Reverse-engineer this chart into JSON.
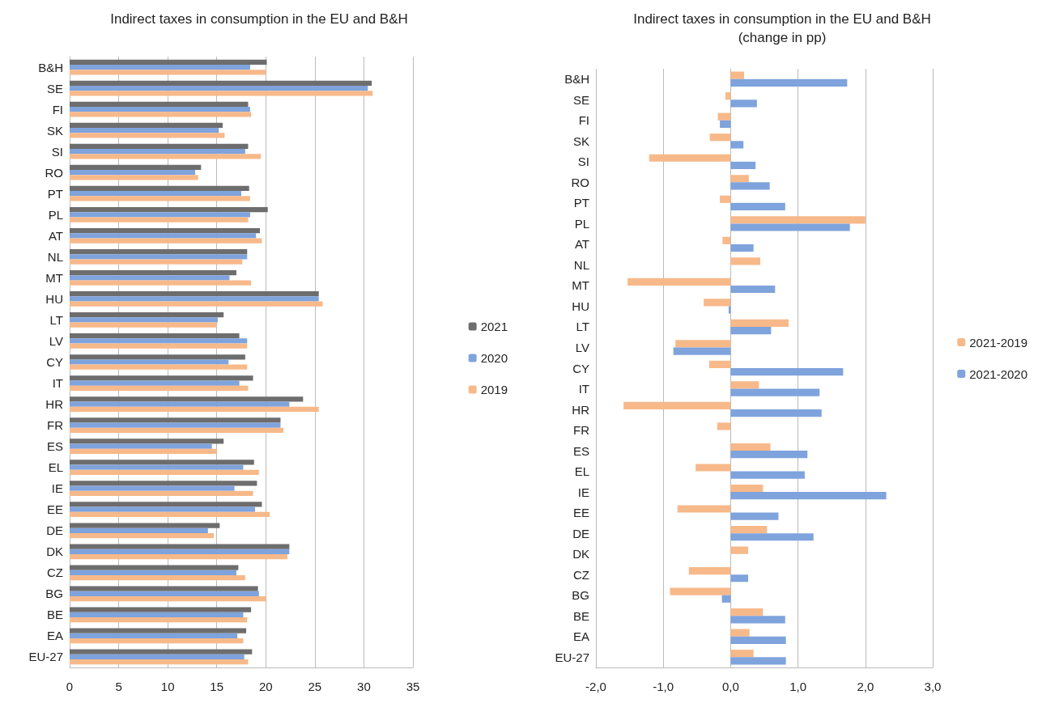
{
  "chart_data": [
    {
      "type": "bar",
      "orientation": "horizontal",
      "title": "Indirect taxes in consumption in the EU and B&H",
      "categories": [
        "B&H",
        "SE",
        "FI",
        "SK",
        "SI",
        "RO",
        "PT",
        "PL",
        "AT",
        "NL",
        "MT",
        "HU",
        "LT",
        "LV",
        "CY",
        "IT",
        "HR",
        "FR",
        "ES",
        "EL",
        "IE",
        "EE",
        "DE",
        "DK",
        "CZ",
        "BG",
        "BE",
        "EA",
        "EU-27"
      ],
      "series": [
        {
          "name": "2021",
          "color": "#6d6d6d",
          "values": [
            20.1,
            30.8,
            18.2,
            15.6,
            18.2,
            13.4,
            18.3,
            20.2,
            19.4,
            18.1,
            17.0,
            25.4,
            15.7,
            17.3,
            17.9,
            18.7,
            23.8,
            21.5,
            15.7,
            18.8,
            19.1,
            19.6,
            15.3,
            22.4,
            17.2,
            19.2,
            18.5,
            18.0,
            18.6
          ]
        },
        {
          "name": "2020",
          "color": "#7fa3dc",
          "values": [
            18.4,
            30.4,
            18.4,
            15.2,
            17.9,
            12.8,
            17.5,
            18.4,
            19.0,
            18.1,
            16.3,
            25.4,
            15.1,
            18.1,
            16.2,
            17.3,
            22.4,
            21.5,
            14.5,
            17.7,
            16.8,
            18.9,
            14.1,
            22.4,
            17.0,
            19.3,
            17.7,
            17.1,
            17.8
          ]
        },
        {
          "name": "2019",
          "color": "#f7b98a",
          "values": [
            20.0,
            30.9,
            18.5,
            15.8,
            19.5,
            13.1,
            18.4,
            18.2,
            19.6,
            17.6,
            18.5,
            25.8,
            15.0,
            18.1,
            18.1,
            18.2,
            25.4,
            21.8,
            15.0,
            19.3,
            18.7,
            20.4,
            14.7,
            22.2,
            17.9,
            20.0,
            18.1,
            17.7,
            18.2
          ]
        }
      ],
      "xlim": [
        0,
        35
      ],
      "xticks": [
        0,
        5,
        10,
        15,
        20,
        25,
        30,
        35
      ],
      "grid": "x",
      "legend": "right"
    },
    {
      "type": "bar",
      "orientation": "horizontal",
      "title": "Indirect taxes in consumption in the EU and B&H",
      "subtitle": "(change in pp)",
      "categories": [
        "B&H",
        "SE",
        "FI",
        "SK",
        "SI",
        "RO",
        "PT",
        "PL",
        "AT",
        "NL",
        "MT",
        "HU",
        "LT",
        "LV",
        "CY",
        "IT",
        "HR",
        "FR",
        "ES",
        "EL",
        "IE",
        "EE",
        "DE",
        "DK",
        "CZ",
        "BG",
        "BE",
        "EA",
        "EU-27"
      ],
      "series": [
        {
          "name": "2021-2019",
          "color": "#f7b98a",
          "values": [
            0.2,
            -0.08,
            -0.19,
            -0.31,
            -1.21,
            0.27,
            -0.16,
            2.0,
            -0.12,
            0.44,
            -1.53,
            -0.4,
            0.86,
            -0.82,
            -0.32,
            0.42,
            -1.59,
            -0.2,
            0.59,
            -0.52,
            0.48,
            -0.79,
            0.54,
            0.26,
            -0.62,
            -0.9,
            0.48,
            0.28,
            0.34
          ]
        },
        {
          "name": "2021-2020",
          "color": "#7fa3dc",
          "values": [
            1.73,
            0.39,
            -0.16,
            0.19,
            0.37,
            0.58,
            0.81,
            1.77,
            0.34,
            null,
            0.66,
            -0.03,
            0.6,
            -0.85,
            1.67,
            1.32,
            1.35,
            0.0,
            1.14,
            1.1,
            2.31,
            0.71,
            1.23,
            0.0,
            0.26,
            -0.13,
            0.81,
            0.82,
            0.82
          ]
        }
      ],
      "xlim": [
        -2,
        3
      ],
      "xticks": [
        {
          "value": -2,
          "label": "-2,0"
        },
        {
          "value": -1,
          "label": "-1,0"
        },
        {
          "value": 0,
          "label": "0,0"
        },
        {
          "value": 1,
          "label": "1,0"
        },
        {
          "value": 2,
          "label": "2,0"
        },
        {
          "value": 3,
          "label": "3,0"
        }
      ],
      "grid": "x",
      "legend": "right"
    }
  ]
}
